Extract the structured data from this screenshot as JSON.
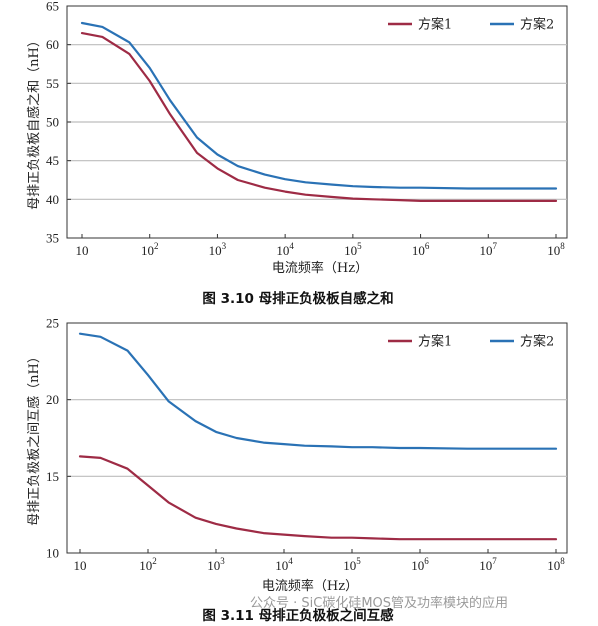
{
  "chart_data": [
    {
      "type": "line",
      "x_scale": "log",
      "xlim": [
        10,
        100000000
      ],
      "ylim": [
        35,
        65
      ],
      "ylabel": "母排正负极板自感之和（nH）",
      "xlabel": "电流频率（Hz）",
      "y_ticks": [
        "35",
        "40",
        "45",
        "50",
        "55",
        "60",
        "65"
      ],
      "x_ticks": [
        {
          "base": "10",
          "exp": ""
        },
        {
          "base": "10",
          "exp": "2"
        },
        {
          "base": "10",
          "exp": "3"
        },
        {
          "base": "10",
          "exp": "4"
        },
        {
          "base": "10",
          "exp": "5"
        },
        {
          "base": "10",
          "exp": "6"
        },
        {
          "base": "10",
          "exp": "7"
        },
        {
          "base": "10",
          "exp": "8"
        }
      ],
      "grid": "horizontal",
      "legend_position": "top-right",
      "caption": "图 3.10  母排正负极板自感之和",
      "x": [
        10,
        20,
        50,
        100,
        200,
        500,
        1000,
        2000,
        5000,
        10000,
        20000,
        50000,
        100000,
        200000,
        500000,
        1000000,
        5000000,
        100000000
      ],
      "series": [
        {
          "name": "方案1",
          "color": "#9e2b45",
          "values": [
            61.5,
            61.0,
            58.8,
            55.3,
            51.0,
            46.0,
            44.0,
            42.5,
            41.5,
            41.0,
            40.6,
            40.3,
            40.1,
            40.0,
            39.9,
            39.8,
            39.8,
            39.8
          ]
        },
        {
          "name": "方案2",
          "color": "#2a72b5",
          "values": [
            62.8,
            62.3,
            60.3,
            57.0,
            52.8,
            48.0,
            45.8,
            44.3,
            43.2,
            42.6,
            42.2,
            41.9,
            41.7,
            41.6,
            41.5,
            41.5,
            41.4,
            41.4
          ]
        }
      ]
    },
    {
      "type": "line",
      "x_scale": "log",
      "xlim": [
        10,
        100000000
      ],
      "ylim": [
        10,
        25
      ],
      "ylabel": "母排正负极板之间互感（nH）",
      "xlabel": "电流频率（Hz）",
      "y_ticks": [
        "10",
        "15",
        "20",
        "25"
      ],
      "x_ticks": [
        {
          "base": "10",
          "exp": ""
        },
        {
          "base": "10",
          "exp": "2"
        },
        {
          "base": "10",
          "exp": "3"
        },
        {
          "base": "10",
          "exp": "4"
        },
        {
          "base": "10",
          "exp": "5"
        },
        {
          "base": "10",
          "exp": "6"
        },
        {
          "base": "10",
          "exp": "7"
        },
        {
          "base": "10",
          "exp": "8"
        }
      ],
      "grid": "horizontal",
      "legend_position": "top-right",
      "caption": "图 3.11  母排正负极板之间互感",
      "x": [
        10,
        20,
        50,
        100,
        200,
        500,
        1000,
        2000,
        5000,
        10000,
        20000,
        50000,
        100000,
        200000,
        500000,
        1000000,
        5000000,
        100000000
      ],
      "series": [
        {
          "name": "方案1",
          "color": "#9e2b45",
          "values": [
            16.3,
            16.2,
            15.5,
            14.4,
            13.3,
            12.3,
            11.9,
            11.6,
            11.3,
            11.2,
            11.1,
            11.0,
            11.0,
            10.95,
            10.9,
            10.9,
            10.9,
            10.9
          ]
        },
        {
          "name": "方案2",
          "color": "#2a72b5",
          "values": [
            24.3,
            24.1,
            23.2,
            21.6,
            19.9,
            18.6,
            17.9,
            17.5,
            17.2,
            17.1,
            17.0,
            16.95,
            16.9,
            16.9,
            16.85,
            16.85,
            16.8,
            16.8
          ]
        }
      ]
    }
  ],
  "watermark": "公众号 · SiC碳化硅MOS管及功率模块的应用"
}
